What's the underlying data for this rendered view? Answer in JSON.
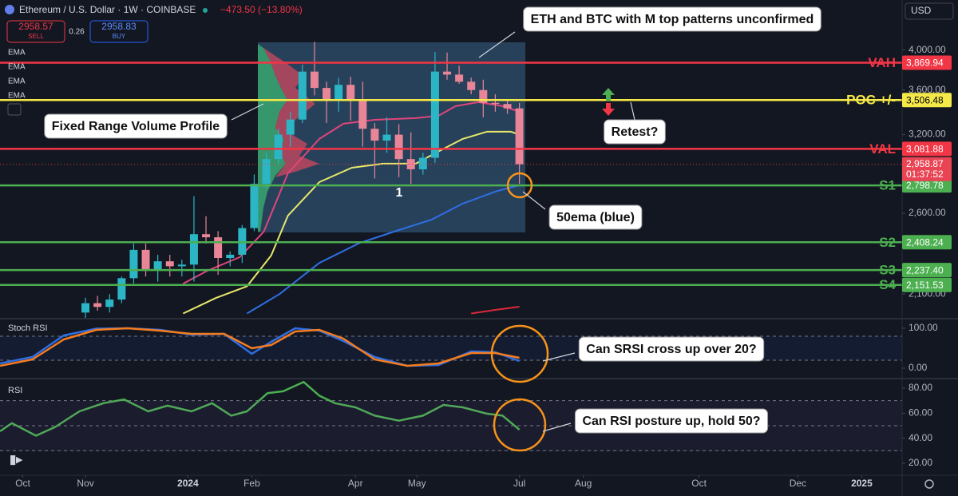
{
  "header": {
    "symbol": "Ethereum / U.S. Dollar · 1W · COINBASE",
    "change": "−473.50 (−13.80%)",
    "sell_price": "2958.57",
    "sell": "SELL",
    "spread": "0.26",
    "buy_price": "2958.83",
    "buy": "BUY",
    "currency": "USD"
  },
  "chart_data": [
    {
      "type": "candlestick",
      "x": [
        0,
        1,
        2,
        3,
        4,
        5,
        6,
        7,
        8,
        9,
        10,
        11,
        12,
        13,
        14,
        15,
        16,
        17,
        18,
        19,
        20,
        21,
        22,
        23,
        24,
        25,
        26,
        27,
        28,
        29,
        30,
        31,
        32,
        33,
        34,
        35,
        36
      ],
      "open": [
        2000,
        2050,
        2030,
        2070,
        2190,
        2360,
        2240,
        2290,
        2260,
        2270,
        2460,
        2440,
        2310,
        2330,
        2500,
        2810,
        3000,
        3200,
        3330,
        3780,
        3620,
        3500,
        3650,
        3500,
        3250,
        3150,
        3200,
        3000,
        2920,
        3010,
        3780,
        3750,
        3680,
        3600,
        3480,
        3470,
        3430
      ],
      "high": [
        2080,
        2090,
        2100,
        2200,
        2400,
        2400,
        2330,
        2330,
        2300,
        2720,
        2580,
        2480,
        2350,
        2520,
        2880,
        3050,
        3250,
        3400,
        3850,
        4090,
        3680,
        3720,
        3730,
        3680,
        3300,
        3350,
        3290,
        3220,
        3050,
        3980,
        3975,
        3840,
        3720,
        3700,
        3560,
        3510,
        3480
      ],
      "low": [
        1960,
        2010,
        2000,
        2050,
        2160,
        2200,
        2170,
        2200,
        2200,
        2170,
        2400,
        2210,
        2260,
        2280,
        2480,
        2780,
        2950,
        3100,
        3300,
        3550,
        3300,
        3400,
        3320,
        3100,
        2850,
        3050,
        2860,
        2810,
        2880,
        2970,
        3700,
        3660,
        3560,
        3350,
        3400,
        3380,
        2810
      ],
      "close": [
        2050,
        2030,
        2070,
        2190,
        2360,
        2240,
        2290,
        2260,
        2270,
        2460,
        2440,
        2310,
        2330,
        2500,
        2810,
        3000,
        3200,
        3330,
        3780,
        3620,
        3500,
        3650,
        3500,
        3250,
        3150,
        3200,
        3000,
        2920,
        3010,
        3780,
        3750,
        3680,
        3600,
        3480,
        3470,
        3430,
        2958.87
      ],
      "up_color": "#2bb5c5",
      "down_color": "#e88597",
      "series": [
        {
          "name": "EMA",
          "color": "#e0457b",
          "x": [
            8.1,
            10.1,
            12.8,
            14.8,
            16.8,
            19.4,
            21.4,
            24,
            27.4,
            29.3,
            30.7,
            32.6,
            34.6,
            36
          ],
          "values": [
            2159,
            2233,
            2315,
            2477,
            2890,
            3164,
            3294,
            3328,
            3343,
            3364,
            3450,
            3487,
            3450,
            3400
          ]
        },
        {
          "name": "EMA",
          "color": "#e8e86a",
          "x": [
            8.1,
            10.8,
            13.4,
            15.4,
            16.8,
            19.4,
            22.1,
            24.7,
            27.4,
            29.3,
            31.3,
            33.3,
            35.3,
            36
          ],
          "values": [
            1995,
            2078,
            2144,
            2325,
            2584,
            2823,
            2932,
            2964,
            2964,
            3062,
            3164,
            3225,
            3225,
            3200
          ]
        },
        {
          "name": "EMA",
          "color": "#2f6fe4",
          "x": [
            13.4,
            16.1,
            19.4,
            22.7,
            26,
            28.7,
            31.3,
            34,
            36
          ],
          "values": [
            1995,
            2100,
            2280,
            2402,
            2487,
            2556,
            2667,
            2753,
            2800
          ]
        },
        {
          "name": "EMA",
          "color": "#d8283a",
          "x": [
            32,
            34,
            36
          ],
          "values": [
            1995,
            2014,
            2031
          ]
        }
      ],
      "log_scale": true,
      "grid": false,
      "xlim": [
        -7.09,
        67.75
      ],
      "xticks": [
        {
          "value": -5.2,
          "label": "Oct"
        },
        {
          "value": 0,
          "label": "Nov"
        },
        {
          "value": 8.5,
          "label": "2024"
        },
        {
          "value": 13.8,
          "label": "Feb"
        },
        {
          "value": 22.4,
          "label": "Apr"
        },
        {
          "value": 27.5,
          "label": "May"
        },
        {
          "value": 36,
          "label": "Jul"
        },
        {
          "value": 41.3,
          "label": "Aug"
        },
        {
          "value": 50.9,
          "label": "Oct"
        },
        {
          "value": 59.1,
          "label": "Dec"
        },
        {
          "value": 64.4,
          "label": "2025"
        }
      ],
      "ylim": [
        1972,
        4567
      ],
      "yticks": [
        {
          "value": 4000,
          "label": "4,000.00"
        },
        {
          "value": 3600,
          "label": "3,600.00"
        },
        {
          "value": 3200,
          "label": "3,200.00"
        },
        {
          "value": 2600,
          "label": "2,600.00"
        },
        {
          "value": 2100,
          "label": "2,100.00"
        }
      ],
      "levels": [
        {
          "name": "VAH",
          "value": 3869.94,
          "label": "3,869.94",
          "color": "#f23645"
        },
        {
          "name": "POC +/-",
          "value": 3506.48,
          "label": "3,506.48",
          "color": "#f5e94a"
        },
        {
          "name": "VAL",
          "value": 3081.88,
          "label": "3,081.88",
          "color": "#f23645"
        },
        {
          "name": "S1",
          "value": 2798.78,
          "label": "2,798.78",
          "color": "#4caf50"
        },
        {
          "name": "S2",
          "value": 2408.24,
          "label": "2,408.24",
          "color": "#4caf50"
        },
        {
          "name": "S3",
          "value": 2237.4,
          "label": "2,237.40",
          "color": "#4caf50"
        },
        {
          "name": "S4",
          "value": 2151.53,
          "label": "2,151.53",
          "color": "#4caf50"
        }
      ],
      "last_price": 2958.87,
      "last_price_label": "2,958.87",
      "countdown": "01:37:52",
      "annotations": [
        "ETH and BTC with M top patterns unconfirmed",
        "Fixed Range Volume Profile",
        "Retest?",
        "50ema (blue)",
        "1",
        "Can SRSI cross up over 20?",
        "Can RSI posture up, hold 50?"
      ]
    },
    {
      "type": "line",
      "title": "Stoch RSI",
      "x": [
        -7.09,
        -4.4,
        -1.8,
        0.9,
        3.5,
        6.2,
        8.8,
        11.5,
        13.8,
        15.4,
        17.4,
        19.4,
        21.4,
        24,
        26.7,
        29.3,
        32,
        34,
        36
      ],
      "series": [
        {
          "color": "#2f6fe4",
          "values": [
            12,
            28,
            82,
            99,
            100,
            96,
            84,
            86,
            36,
            66,
            100,
            94,
            68,
            28,
            6,
            8,
            42,
            40,
            18
          ]
        },
        {
          "color": "#f57c1f",
          "values": [
            6,
            22,
            72,
            96,
            100,
            94,
            86,
            86,
            50,
            58,
            92,
            96,
            74,
            22,
            6,
            12,
            38,
            38,
            26
          ]
        }
      ],
      "ylim": [
        -22,
        122
      ],
      "yticks": [
        {
          "value": 100,
          "label": "100.00"
        },
        {
          "value": 0,
          "label": "0.00"
        }
      ],
      "bands": [
        80,
        20
      ]
    },
    {
      "type": "line",
      "title": "RSI",
      "x": [
        -7.09,
        -6.1,
        -4.1,
        -2.5,
        -0.5,
        1.5,
        3.2,
        5.2,
        6.8,
        8.8,
        10.5,
        12.1,
        13.4,
        15.1,
        16.4,
        18.1,
        19.4,
        20.7,
        22.4,
        24,
        26,
        28,
        29.7,
        31.3,
        33.3,
        34.6,
        36
      ],
      "series": [
        {
          "color": "#4caf50",
          "values": [
            45.5,
            52,
            42,
            49,
            61.5,
            68,
            71,
            61.5,
            66,
            61.5,
            68,
            58,
            61.5,
            76,
            77.5,
            85,
            74,
            68,
            64.7,
            58,
            54,
            58,
            66.6,
            64.7,
            59.6,
            58,
            46.8
          ]
        }
      ],
      "ylim": [
        10.4,
        85.1
      ],
      "yticks": [
        {
          "value": 80,
          "label": "80.00"
        },
        {
          "value": 60,
          "label": "60.00"
        },
        {
          "value": 40,
          "label": "40.00"
        },
        {
          "value": 20,
          "label": "20.00"
        }
      ],
      "bands": [
        70,
        50,
        30
      ]
    }
  ]
}
